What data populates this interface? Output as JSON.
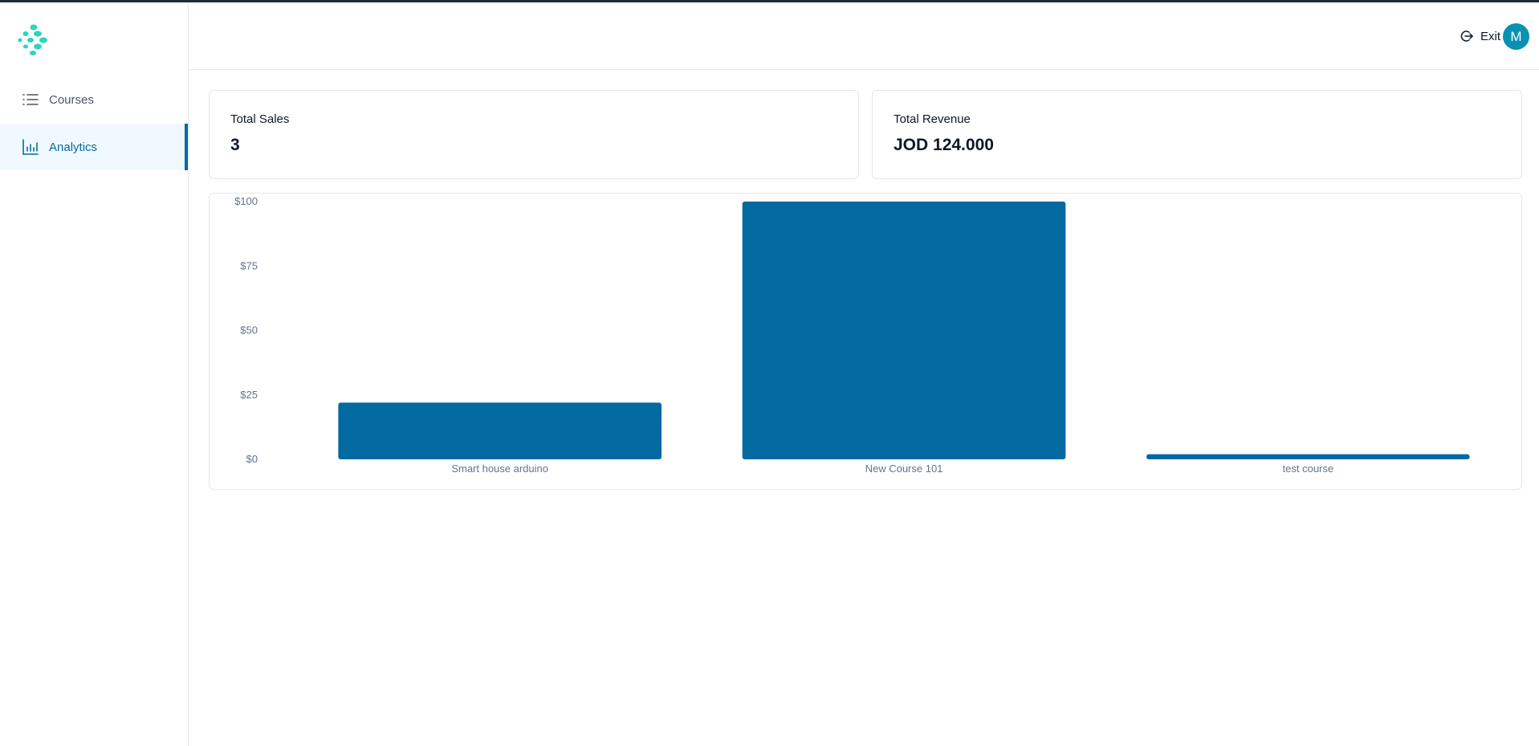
{
  "sidebar": {
    "logo_icon": "dots-logo-icon",
    "items": [
      {
        "label": "Courses",
        "icon": "list-icon",
        "active": false
      },
      {
        "label": "Analytics",
        "icon": "bar-chart-icon",
        "active": true
      }
    ]
  },
  "header": {
    "exit_label": "Exit",
    "exit_icon": "logout-icon",
    "avatar_initial": "M"
  },
  "stats": {
    "total_sales": {
      "label": "Total Sales",
      "value": "3"
    },
    "total_revenue": {
      "label": "Total Revenue",
      "value": "JOD 124.000"
    }
  },
  "colors": {
    "accent": "#0369a1",
    "bar": "#0369a1",
    "avatar": "#0891b2",
    "logo": "#2dd4bf"
  },
  "chart_data": {
    "type": "bar",
    "categories": [
      "Smart house arduino",
      "New Course 101",
      "test course"
    ],
    "values": [
      22,
      100,
      2
    ],
    "ylim": [
      0,
      100
    ],
    "yticks": [
      "$0",
      "$25",
      "$50",
      "$75",
      "$100"
    ],
    "grid": false,
    "title": "",
    "xlabel": "",
    "ylabel": ""
  }
}
